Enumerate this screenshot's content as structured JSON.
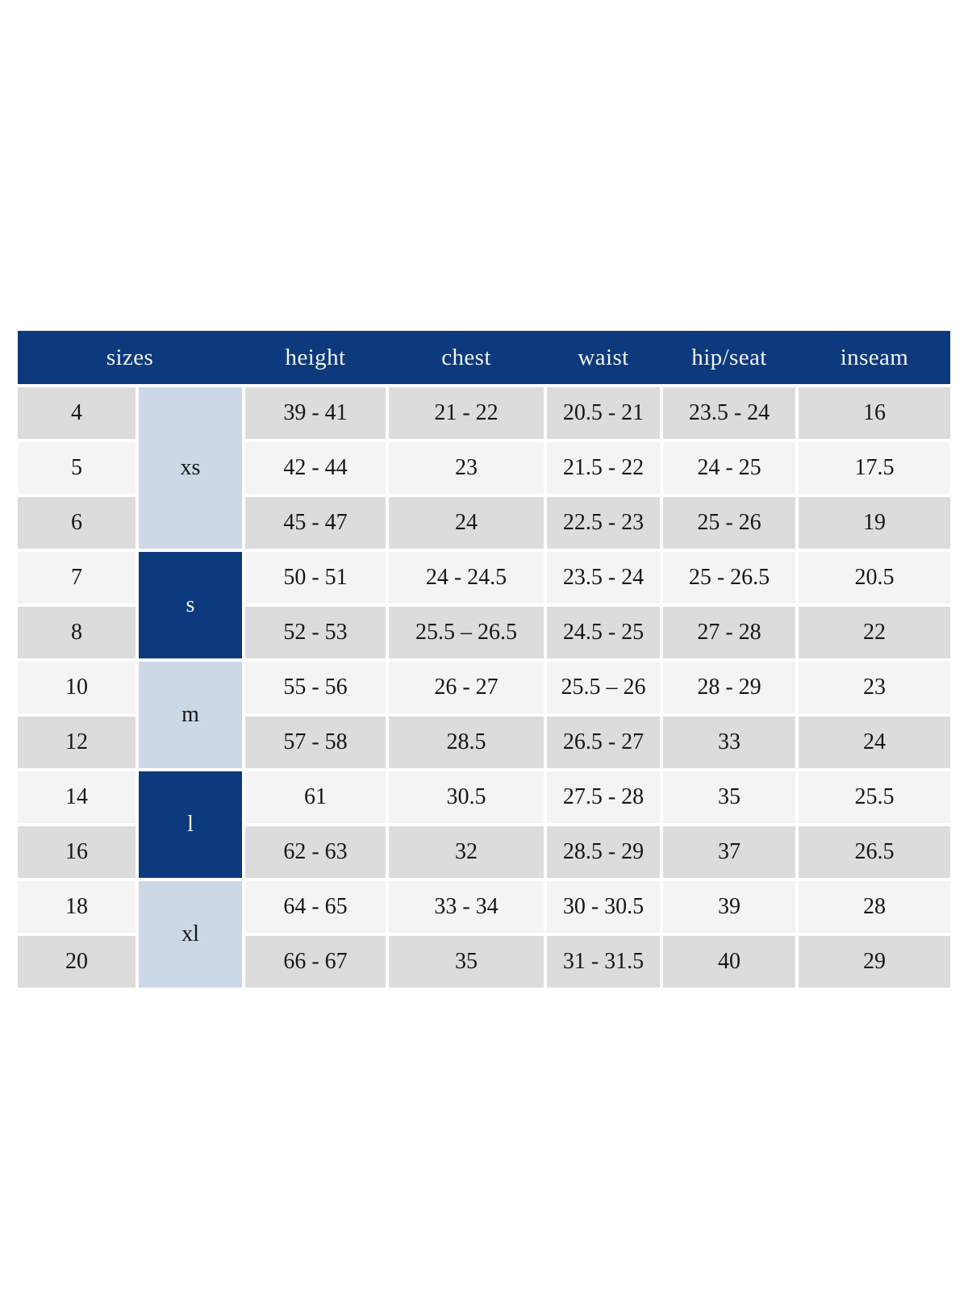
{
  "chart_data": {
    "type": "table",
    "columns": [
      {
        "key": "sizes",
        "label": "sizes"
      },
      {
        "key": "height",
        "label": "height"
      },
      {
        "key": "chest",
        "label": "chest"
      },
      {
        "key": "waist",
        "label": "waist"
      },
      {
        "key": "hip_seat",
        "label": "hip/seat"
      },
      {
        "key": "inseam",
        "label": "inseam"
      }
    ],
    "size_groups": [
      {
        "label": "xs",
        "row_span": 3,
        "variant": "light"
      },
      {
        "label": "s",
        "row_span": 2,
        "variant": "dark"
      },
      {
        "label": "m",
        "row_span": 2,
        "variant": "light"
      },
      {
        "label": "l",
        "row_span": 2,
        "variant": "dark"
      },
      {
        "label": "xl",
        "row_span": 2,
        "variant": "light"
      }
    ],
    "rows": [
      {
        "size": "4",
        "height": "39 - 41",
        "chest": "21 - 22",
        "waist": "20.5 - 21",
        "hip_seat": "23.5 - 24",
        "inseam": "16"
      },
      {
        "size": "5",
        "height": "42 - 44",
        "chest": "23",
        "waist": "21.5 - 22",
        "hip_seat": "24 - 25",
        "inseam": "17.5"
      },
      {
        "size": "6",
        "height": "45 - 47",
        "chest": "24",
        "waist": "22.5 - 23",
        "hip_seat": "25 - 26",
        "inseam": "19"
      },
      {
        "size": "7",
        "height": "50 - 51",
        "chest": "24 - 24.5",
        "waist": "23.5 - 24",
        "hip_seat": "25 - 26.5",
        "inseam": "20.5"
      },
      {
        "size": "8",
        "height": "52 - 53",
        "chest": "25.5 – 26.5",
        "waist": "24.5 - 25",
        "hip_seat": "27 - 28",
        "inseam": "22"
      },
      {
        "size": "10",
        "height": "55 - 56",
        "chest": "26 - 27",
        "waist": "25.5 – 26",
        "hip_seat": "28 - 29",
        "inseam": "23"
      },
      {
        "size": "12",
        "height": "57 - 58",
        "chest": "28.5",
        "waist": "26.5 - 27",
        "hip_seat": "33",
        "inseam": "24"
      },
      {
        "size": "14",
        "height": "61",
        "chest": "30.5",
        "waist": "27.5 - 28",
        "hip_seat": "35",
        "inseam": "25.5"
      },
      {
        "size": "16",
        "height": "62 - 63",
        "chest": "32",
        "waist": "28.5 - 29",
        "hip_seat": "37",
        "inseam": "26.5"
      },
      {
        "size": "18",
        "height": "64 - 65",
        "chest": "33 - 34",
        "waist": "30 - 30.5",
        "hip_seat": "39",
        "inseam": "28"
      },
      {
        "size": "20",
        "height": "66 - 67",
        "chest": "35",
        "waist": "31 - 31.5",
        "hip_seat": "40",
        "inseam": "29"
      }
    ],
    "layout_hints": {
      "header_position": "top",
      "grid": "white gutters between cells",
      "row_shading": "alternating gray / off-white starting gray"
    }
  },
  "colors": {
    "header_bg": "#0d3a7c",
    "header_text": "#f3f4f6",
    "group_light_bg": "#ccd8e6",
    "group_dark_bg": "#0d3a7c",
    "row_gray": "#dcdcdc",
    "row_offwhite": "#f4f4f4",
    "body_text": "#161616",
    "page_bg": "#ffffff"
  }
}
